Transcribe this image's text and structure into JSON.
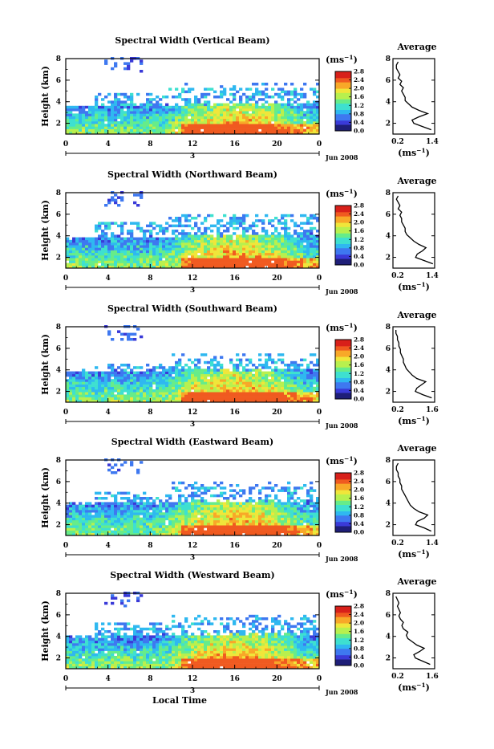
{
  "figure": {
    "xlabel": "Local Time",
    "time_ticks": [
      "0",
      "4",
      "8",
      "12",
      "16",
      "20",
      "0"
    ],
    "date_tick": "3",
    "date_label": "Jun 2008",
    "ylabel": "Height (km)",
    "height_ticks": [
      "2",
      "4",
      "6",
      "8"
    ],
    "unit_label": "(ms",
    "unit_exp": "−1",
    "colorbar_ticks": [
      "0.0",
      "0.4",
      "0.8",
      "1.2",
      "1.6",
      "2.0",
      "2.4",
      "2.8"
    ],
    "average_title": "Average",
    "average_unit": "(ms",
    "average_unit_exp": "−1",
    "colormap": [
      "#1e1e78",
      "#3a3ad8",
      "#3e78f0",
      "#2fb8f0",
      "#3ee0d0",
      "#66ec8a",
      "#b8f04e",
      "#f0e63a",
      "#f8a828",
      "#f05a20",
      "#d8201a"
    ]
  },
  "chart_data": [
    {
      "type": "heatmap",
      "title": "Spectral Width (Vertical Beam)",
      "x": {
        "unit": "local time (h)",
        "range": [
          0,
          24
        ],
        "ticks": [
          0,
          4,
          8,
          12,
          16,
          20,
          24
        ]
      },
      "y": {
        "unit": "km",
        "range": [
          1,
          8
        ],
        "ticks": [
          2,
          4,
          6,
          8
        ]
      },
      "colorbar": {
        "range": [
          0,
          2.8
        ],
        "ticks": [
          0.0,
          0.4,
          0.8,
          1.2,
          1.6,
          2.0,
          2.4,
          2.8
        ]
      },
      "layer_tops_km": [
        3.6,
        4.7,
        5.7
      ],
      "profile": {
        "xticks": [
          "0.2",
          "1.4"
        ],
        "xlim": [
          0.2,
          1.4
        ],
        "ylim": [
          1,
          8
        ],
        "height": [
          1.4,
          1.7,
          2.0,
          2.3,
          2.6,
          2.9,
          3.2,
          3.5,
          3.8,
          4.1,
          4.4,
          4.7,
          5.0,
          5.3,
          5.6,
          5.9,
          6.2,
          6.5,
          6.8,
          7.1,
          7.4,
          7.7
        ],
        "width": [
          1.3,
          1.05,
          0.8,
          0.75,
          0.95,
          1.2,
          0.95,
          0.75,
          0.65,
          0.55,
          0.55,
          0.5,
          0.45,
          0.5,
          0.4,
          0.45,
          0.35,
          0.4,
          0.35,
          0.3,
          0.3,
          0.35
        ]
      }
    },
    {
      "type": "heatmap",
      "title": "Spectral Width (Northward Beam)",
      "x": {
        "unit": "local time (h)",
        "range": [
          0,
          24
        ],
        "ticks": [
          0,
          4,
          8,
          12,
          16,
          20,
          24
        ]
      },
      "y": {
        "unit": "km",
        "range": [
          1,
          8
        ],
        "ticks": [
          2,
          4,
          6,
          8
        ]
      },
      "colorbar": {
        "range": [
          0,
          2.8
        ],
        "ticks": [
          0.0,
          0.4,
          0.8,
          1.2,
          1.6,
          2.0,
          2.4,
          2.8
        ]
      },
      "layer_tops_km": [
        3.8,
        5.3,
        6.0
      ],
      "profile": {
        "xticks": [
          "0.2",
          "1.4"
        ],
        "xlim": [
          0.2,
          1.4
        ],
        "ylim": [
          1,
          8
        ],
        "height": [
          1.4,
          1.7,
          2.0,
          2.3,
          2.6,
          2.9,
          3.2,
          3.5,
          3.8,
          4.1,
          4.4,
          4.7,
          5.0,
          5.3,
          5.6,
          5.9,
          6.2,
          6.5,
          6.8,
          7.1,
          7.4,
          7.7
        ],
        "width": [
          1.35,
          1.1,
          0.85,
          0.9,
          1.05,
          1.15,
          0.95,
          0.8,
          0.7,
          0.6,
          0.55,
          0.55,
          0.5,
          0.45,
          0.45,
          0.4,
          0.45,
          0.35,
          0.4,
          0.35,
          0.3,
          0.35
        ]
      }
    },
    {
      "type": "heatmap",
      "title": "Spectral Width (Southward Beam)",
      "x": {
        "unit": "local time (h)",
        "range": [
          0,
          24
        ],
        "ticks": [
          0,
          4,
          8,
          12,
          16,
          20,
          24
        ]
      },
      "y": {
        "unit": "km",
        "range": [
          1,
          8
        ],
        "ticks": [
          2,
          4,
          6,
          8
        ]
      },
      "colorbar": {
        "range": [
          0,
          2.8
        ],
        "ticks": [
          0.0,
          0.4,
          0.8,
          1.2,
          1.6,
          2.0,
          2.4,
          2.8
        ]
      },
      "layer_tops_km": [
        3.9,
        4.5,
        5.6
      ],
      "profile": {
        "xticks": [
          "0.2",
          "1.6"
        ],
        "xlim": [
          0.2,
          1.6
        ],
        "ylim": [
          1,
          8
        ],
        "height": [
          1.4,
          1.7,
          2.0,
          2.3,
          2.6,
          2.9,
          3.2,
          3.5,
          3.8,
          4.1,
          4.4,
          4.7,
          5.0,
          5.3,
          5.6,
          5.9,
          6.2,
          6.5,
          6.8,
          7.1,
          7.4,
          7.7
        ],
        "width": [
          1.5,
          1.2,
          0.95,
          1.0,
          1.15,
          1.3,
          1.0,
          0.85,
          0.75,
          0.65,
          0.6,
          0.55,
          0.55,
          0.5,
          0.45,
          0.45,
          0.4,
          0.4,
          0.35,
          0.35,
          0.3,
          0.3
        ]
      }
    },
    {
      "type": "heatmap",
      "title": "Spectral Width (Eastward Beam)",
      "x": {
        "unit": "local time (h)",
        "range": [
          0,
          24
        ],
        "ticks": [
          0,
          4,
          8,
          12,
          16,
          20,
          24
        ]
      },
      "y": {
        "unit": "km",
        "range": [
          1,
          8
        ],
        "ticks": [
          2,
          4,
          6,
          8
        ]
      },
      "colorbar": {
        "range": [
          0,
          2.8
        ],
        "ticks": [
          0.0,
          0.4,
          0.8,
          1.2,
          1.6,
          2.0,
          2.4,
          2.8
        ]
      },
      "layer_tops_km": [
        4.0,
        5.0,
        5.9
      ],
      "profile": {
        "xticks": [
          "0.2",
          "1.4"
        ],
        "xlim": [
          0.2,
          1.4
        ],
        "ylim": [
          1,
          8
        ],
        "height": [
          1.4,
          1.7,
          2.0,
          2.3,
          2.6,
          2.9,
          3.2,
          3.5,
          3.8,
          4.1,
          4.4,
          4.7,
          5.0,
          5.3,
          5.6,
          5.9,
          6.2,
          6.5,
          6.8,
          7.1,
          7.4,
          7.7
        ],
        "width": [
          1.3,
          1.1,
          0.85,
          0.9,
          1.1,
          1.2,
          0.95,
          0.8,
          0.7,
          0.65,
          0.6,
          0.55,
          0.5,
          0.45,
          0.45,
          0.4,
          0.4,
          0.35,
          0.35,
          0.3,
          0.3,
          0.35
        ]
      }
    },
    {
      "type": "heatmap",
      "title": "Spectral Width (Westward Beam)",
      "x": {
        "unit": "local time (h)",
        "range": [
          0,
          24
        ],
        "ticks": [
          0,
          4,
          8,
          12,
          16,
          20,
          24
        ]
      },
      "y": {
        "unit": "km",
        "range": [
          1,
          8
        ],
        "ticks": [
          2,
          4,
          6,
          8
        ]
      },
      "colorbar": {
        "range": [
          0,
          2.8
        ],
        "ticks": [
          0.0,
          0.4,
          0.8,
          1.2,
          1.6,
          2.0,
          2.4,
          2.8
        ]
      },
      "layer_tops_km": [
        4.0,
        5.2,
        6.1
      ],
      "profile": {
        "xticks": [
          "0.2",
          "1.6"
        ],
        "xlim": [
          0.2,
          1.6
        ],
        "ylim": [
          1,
          8
        ],
        "height": [
          1.4,
          1.7,
          2.0,
          2.3,
          2.6,
          2.9,
          3.2,
          3.5,
          3.8,
          4.1,
          4.4,
          4.7,
          5.0,
          5.3,
          5.6,
          5.9,
          6.2,
          6.5,
          6.8,
          7.1,
          7.4,
          7.7
        ],
        "width": [
          1.45,
          1.2,
          0.95,
          0.9,
          1.1,
          1.25,
          1.0,
          0.85,
          0.7,
          0.65,
          0.7,
          0.55,
          0.5,
          0.55,
          0.45,
          0.4,
          0.45,
          0.4,
          0.35,
          0.4,
          0.35,
          0.3
        ]
      }
    }
  ]
}
